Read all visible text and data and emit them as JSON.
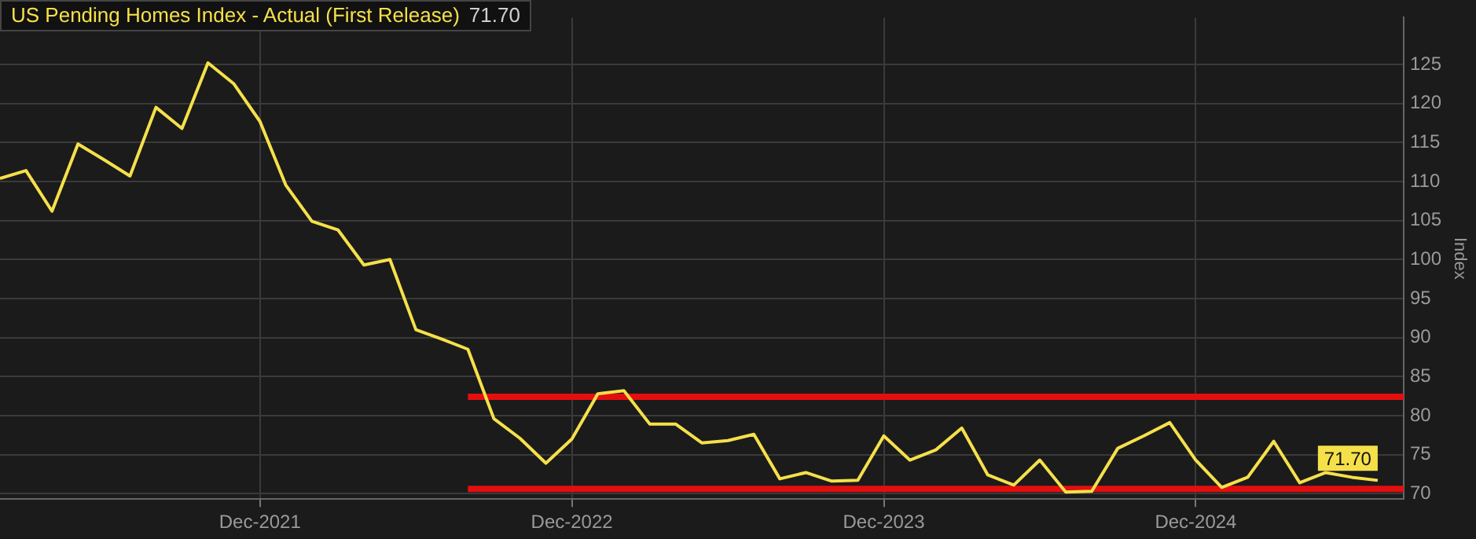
{
  "chart_data": {
    "type": "line",
    "ylabel": "Index",
    "legend": "top left",
    "grid": true,
    "marker": "none",
    "line_style": "solid",
    "xlim": [
      "2021-02",
      "2025-08"
    ],
    "xticks": [
      {
        "value": "2021-12",
        "label": "Dec-2021"
      },
      {
        "value": "2022-12",
        "label": "Dec-2022"
      },
      {
        "value": "2023-12",
        "label": "Dec-2023"
      },
      {
        "value": "2024-12",
        "label": "Dec-2024"
      }
    ],
    "ylim": [
      69.3,
      131
    ],
    "yticks": [
      70,
      75,
      80,
      85,
      90,
      95,
      100,
      105,
      110,
      115,
      120,
      125
    ],
    "x": [
      "2021-02",
      "2021-03",
      "2021-04",
      "2021-05",
      "2021-06",
      "2021-07",
      "2021-08",
      "2021-09",
      "2021-10",
      "2021-11",
      "2021-12",
      "2022-01",
      "2022-02",
      "2022-03",
      "2022-04",
      "2022-05",
      "2022-06",
      "2022-07",
      "2022-08",
      "2022-09",
      "2022-10",
      "2022-11",
      "2022-12",
      "2023-01",
      "2023-02",
      "2023-03",
      "2023-04",
      "2023-05",
      "2023-06",
      "2023-07",
      "2023-08",
      "2023-09",
      "2023-10",
      "2023-11",
      "2023-12",
      "2024-01",
      "2024-02",
      "2024-03",
      "2024-04",
      "2024-05",
      "2024-06",
      "2024-07",
      "2024-08",
      "2024-09",
      "2024-10",
      "2024-11",
      "2024-12",
      "2025-01",
      "2025-02",
      "2025-03",
      "2025-04",
      "2025-05",
      "2025-06",
      "2025-07"
    ],
    "series": [
      {
        "name": "US Pending Homes Index - Actual (First Release)",
        "color": "#f5e04a",
        "values": [
          110.4,
          111.4,
          106.2,
          114.8,
          112.8,
          110.7,
          119.5,
          116.8,
          125.2,
          122.5,
          117.7,
          109.5,
          104.9,
          103.8,
          99.3,
          100,
          91,
          89.8,
          88.5,
          79.6,
          77.1,
          73.9,
          77,
          82.8,
          83.2,
          78.9,
          78.9,
          76.5,
          76.8,
          77.6,
          71.9,
          72.7,
          71.6,
          71.7,
          77.4,
          74.3,
          75.6,
          78.4,
          72.4,
          71.1,
          74.3,
          70.2,
          70.3,
          75.8,
          77.4,
          79.1,
          74.3,
          70.8,
          72.1,
          76.7,
          71.4,
          72.7,
          72.1,
          71.7
        ],
        "value_labels": [
          null,
          null,
          null,
          null,
          null,
          null,
          null,
          null,
          null,
          null,
          null,
          null,
          null,
          null,
          null,
          null,
          null,
          null,
          null,
          null,
          null,
          null,
          null,
          null,
          null,
          null,
          null,
          null,
          null,
          null,
          null,
          null,
          null,
          null,
          null,
          null,
          null,
          null,
          null,
          null,
          null,
          null,
          null,
          null,
          null,
          null,
          null,
          null,
          null,
          null,
          null,
          null,
          null,
          "71.70"
        ]
      },
      {
        "color": "#e30f0f",
        "x": [
          "2022-08",
          "2025-08"
        ],
        "values": [
          82.4,
          82.4
        ]
      },
      {
        "color": "#e30f0f",
        "x": [
          "2022-08",
          "2025-08"
        ],
        "values": [
          70.6,
          70.6
        ]
      }
    ]
  }
}
